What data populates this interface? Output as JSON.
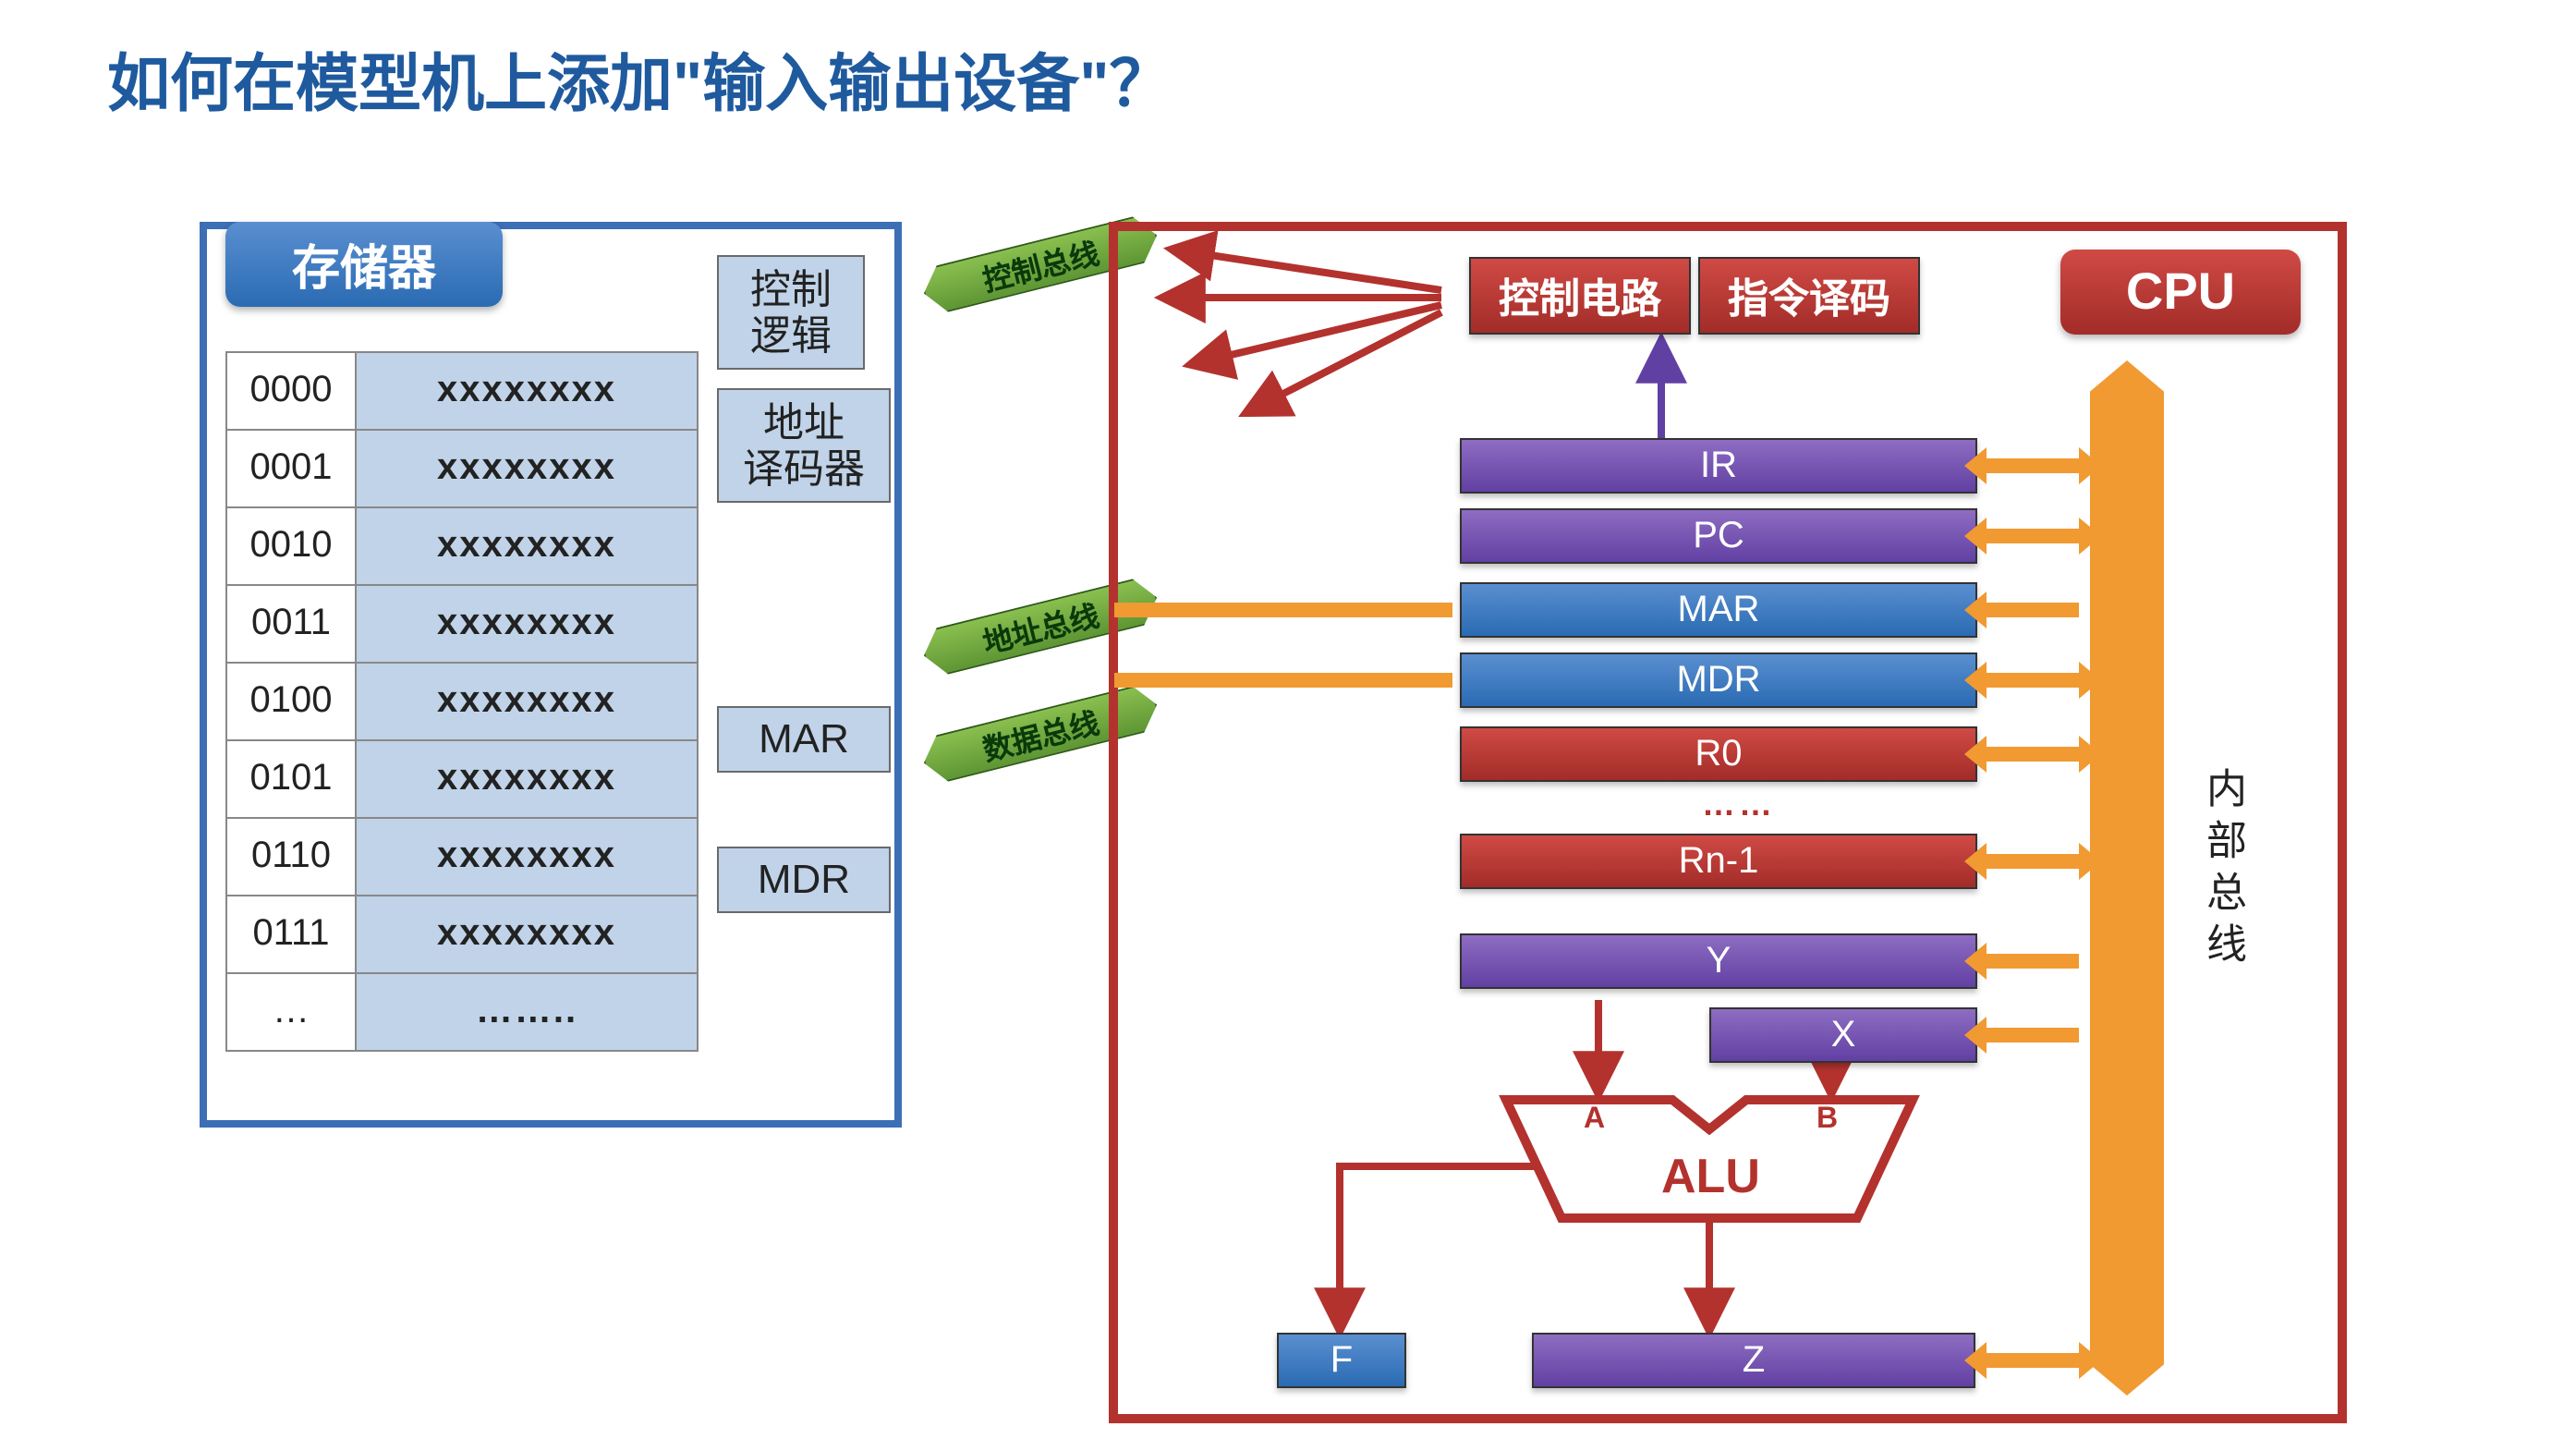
{
  "title": "如何在模型机上添加\"输入输出设备\"？",
  "colors": {
    "title": "#1f5a9e",
    "memBorder": "#3c6fb6",
    "cpuBorder": "#b3322e",
    "purple1": "#8e6dc2",
    "purple2": "#6140a3",
    "blue1": "#5a8fd0",
    "blue2": "#2a6bb3",
    "red1": "#d04a45",
    "red2": "#a22c28",
    "orange": "#f19a32",
    "green1": "#8abf4f",
    "green2": "#5e9634",
    "cellBg": "#c0d3e8"
  },
  "memory": {
    "header": "存储器",
    "rows": [
      {
        "addr": "0000",
        "val": "xxxxxxxx"
      },
      {
        "addr": "0001",
        "val": "xxxxxxxx"
      },
      {
        "addr": "0010",
        "val": "xxxxxxxx"
      },
      {
        "addr": "0011",
        "val": "xxxxxxxx"
      },
      {
        "addr": "0100",
        "val": "xxxxxxxx"
      },
      {
        "addr": "0101",
        "val": "xxxxxxxx"
      },
      {
        "addr": "0110",
        "val": "xxxxxxxx"
      },
      {
        "addr": "0111",
        "val": "xxxxxxxx"
      },
      {
        "addr": "…",
        "val": "…….."
      }
    ],
    "sideboxes": {
      "ctrlLogic": "控制\n逻辑",
      "addrDec": "地址\n译码器",
      "mar": "MAR",
      "mdr": "MDR"
    }
  },
  "buses": {
    "control": "控制总线",
    "address": "地址总线",
    "data": "数据总线",
    "internal": "内部总线"
  },
  "cpu": {
    "label": "CPU",
    "controlCircuit": "控制电路",
    "instrDecode": "指令译码",
    "registers": {
      "ir": "IR",
      "pc": "PC",
      "mar": "MAR",
      "mdr": "MDR",
      "r0": "R0",
      "rn1": "Rn-1",
      "y": "Y",
      "x": "X",
      "f": "F",
      "z": "Z"
    },
    "alu": {
      "label": "ALU",
      "a": "A",
      "b": "B"
    },
    "dots": "……"
  },
  "layout": {
    "cpuBoxW": 670,
    "cpuBoxH": 650,
    "regLeft": 185,
    "regW": 280,
    "busX": 546
  }
}
